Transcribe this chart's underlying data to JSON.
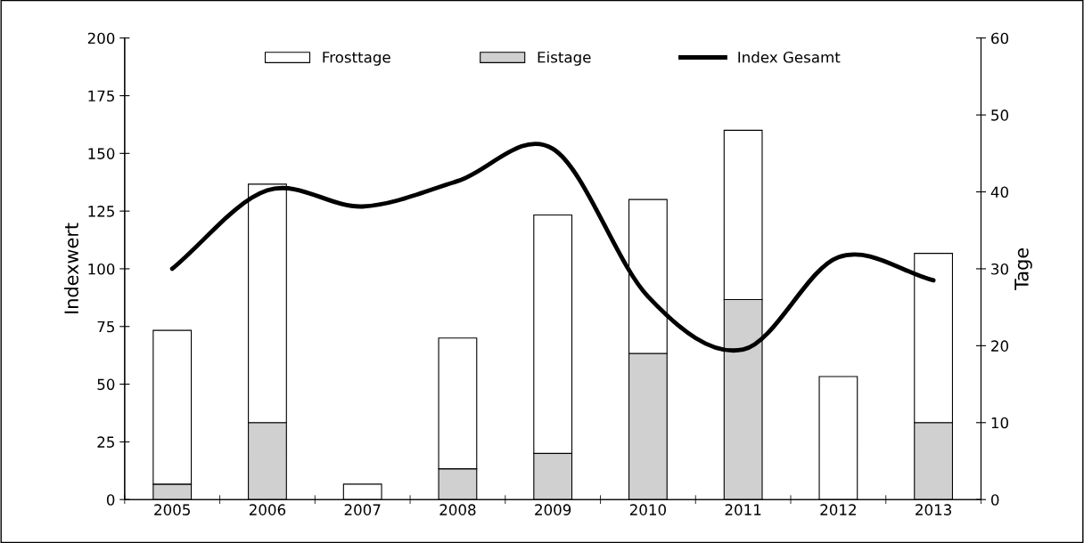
{
  "chart_data": {
    "type": "bar",
    "stacked": true,
    "ylabel": "Indexwert",
    "y2label": "Tage",
    "categories": [
      "2005",
      "2006",
      "2007",
      "2008",
      "2009",
      "2010",
      "2011",
      "2012",
      "2013"
    ],
    "series": [
      {
        "name": "Eistage",
        "color": "#d0d0d0",
        "axis": "y2",
        "values": [
          2,
          10,
          0,
          4,
          6,
          19,
          26,
          0,
          10
        ]
      },
      {
        "name": "Frosttage",
        "color": "#ffffff",
        "axis": "y2",
        "values": [
          20,
          31,
          2,
          17,
          31,
          20,
          22,
          16,
          22
        ]
      },
      {
        "name": "Index Gesamt",
        "type": "line",
        "color": "#000000",
        "values": [
          100,
          134,
          127,
          138,
          152,
          88,
          65,
          105,
          95
        ]
      }
    ],
    "ylim": [
      0,
      200
    ],
    "yticks": [
      0,
      25,
      50,
      75,
      100,
      125,
      150,
      175,
      200
    ],
    "y2lim": [
      0,
      60
    ],
    "y2ticks": [
      0,
      10,
      20,
      30,
      40,
      50,
      60
    ],
    "legend": "top",
    "grid": false
  }
}
